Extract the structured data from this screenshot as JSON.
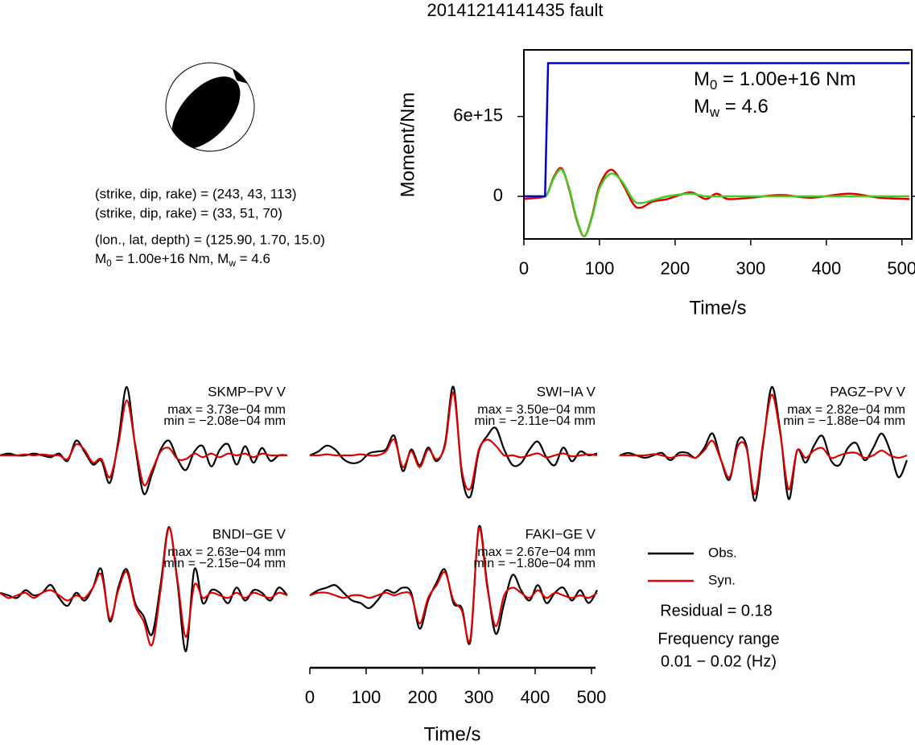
{
  "title": "20141214141435 fault",
  "info": [
    "(strike, dip, rake) = (243, 43, 113)",
    "(strike, dip, rake) = (33, 51, 70)",
    "(lon., lat, depth) = (125.90, 1.70, 15.0)",
    [
      "M",
      "0",
      " = 1.00e+16 Nm, M",
      "w",
      " = 4.6"
    ]
  ],
  "chart_data": [
    {
      "type": "line",
      "xlabel": "Time/s",
      "ylabel": "Moment/Nm",
      "xlim": [
        0,
        513
      ],
      "ylim": [
        -3200000000000000.0,
        1.1e+16
      ],
      "xticks": [
        0,
        100,
        200,
        300,
        400,
        500
      ],
      "yticks": [
        0,
        {
          "value": 6000000000000000.0,
          "label": "6e+15"
        }
      ],
      "annotations": [
        [
          "M",
          "0",
          " = 1.00e+16 Nm"
        ],
        [
          "M",
          "w",
          " = 4.6"
        ]
      ],
      "x": [
        0,
        20,
        28,
        32,
        40,
        50,
        60,
        70,
        80,
        90,
        100,
        115,
        130,
        145,
        155,
        170,
        190,
        220,
        240,
        255,
        270,
        300,
        340,
        380,
        430,
        470,
        510
      ],
      "series": [
        {
          "color": "#dd0000",
          "values": [
            -200000000000000.0,
            -100000000000000.0,
            0,
            300000000000000.0,
            1500000000000000.0,
            2100000000000000.0,
            500000000000000.0,
            -1800000000000000.0,
            -3000000000000000.0,
            -1500000000000000.0,
            800000000000000.0,
            2000000000000000.0,
            1000000000000000.0,
            -600000000000000.0,
            -850000000000000.0,
            -400000000000000.0,
            -200000000000000.0,
            300000000000000.0,
            -200000000000000.0,
            200000000000000.0,
            -200000000000000.0,
            -100000000000000.0,
            100000000000000.0,
            -100000000000000.0,
            200000000000000.0,
            -100000000000000.0,
            -200000000000000.0
          ]
        },
        {
          "color": "#44cc22",
          "values": [
            0,
            0,
            0,
            300000000000000.0,
            1400000000000000.0,
            2000000000000000.0,
            600000000000000.0,
            -1700000000000000.0,
            -3000000000000000.0,
            -1600000000000000.0,
            600000000000000.0,
            1700000000000000.0,
            1100000000000000.0,
            -300000000000000.0,
            -500000000000000.0,
            -300000000000000.0,
            0,
            200000000000000.0,
            0,
            0,
            0,
            0,
            0,
            0,
            0,
            0,
            0
          ]
        },
        {
          "color": "#0000cc",
          "step": true,
          "values": [
            0,
            0,
            0,
            1e+16,
            1e+16,
            1e+16,
            1e+16,
            1e+16,
            1e+16,
            1e+16,
            1e+16,
            1e+16,
            1e+16,
            1e+16,
            1e+16,
            1e+16,
            1e+16,
            1e+16,
            1e+16,
            1e+16,
            1e+16,
            1e+16,
            1e+16,
            1e+16,
            1e+16,
            1e+16,
            1e+16
          ]
        }
      ]
    },
    {
      "type": "waveforms",
      "xlabel": "Time/s",
      "xlim": [
        0,
        510
      ],
      "xticks": [
        0,
        100,
        200,
        300,
        400,
        500
      ],
      "x": [
        0,
        15,
        30,
        45,
        60,
        75,
        90,
        105,
        120,
        135,
        150,
        165,
        180,
        195,
        210,
        225,
        240,
        255,
        270,
        285,
        300,
        315,
        330,
        345,
        360,
        375,
        390,
        405,
        420,
        435,
        450,
        465,
        480,
        495,
        510
      ],
      "series_style": [
        {
          "name": "Obs.",
          "color": "#000000"
        },
        {
          "name": "Syn.",
          "color": "#dd0000"
        }
      ],
      "residual": "Residual = 0.18",
      "frequency": [
        "Frequency range",
        "0.01 − 0.02 (Hz)"
      ],
      "panels": [
        {
          "name": "SKMP−PV V",
          "max": "max = 3.73e−04 mm",
          "min": "min = −2.08e−04 mm",
          "obs": [
            0,
            1e-05,
            0,
            0,
            1e-05,
            0,
            -1e-05,
            1e-05,
            -3e-05,
            8e-05,
            2e-05,
            -5e-05,
            -3e-05,
            -0.00015,
            8e-05,
            0.000373,
            5e-05,
            -0.000208,
            -0.0001,
            3e-05,
            8e-05,
            -2e-05,
            -8e-05,
            2e-05,
            5e-05,
            -6e-05,
            3e-05,
            6e-05,
            -5e-05,
            5e-05,
            -4e-05,
            4e-05,
            -3e-05,
            0,
            0
          ],
          "syn": [
            0,
            0,
            0,
            5e-06,
            0,
            5e-06,
            0,
            0,
            -2e-05,
            6e-05,
            3e-05,
            -4e-05,
            -2e-05,
            -0.00012,
            6e-05,
            0.0003,
            6e-05,
            -0.00016,
            -8e-05,
            2e-05,
            4e-05,
            -2e-05,
            -2e-05,
            1e-05,
            -1e-05,
            1e-05,
            -1e-05,
            1e-05,
            0,
            1e-05,
            -1e-05,
            1e-05,
            0,
            0,
            0
          ]
        },
        {
          "name": "SWI−IA V",
          "max": "max = 3.50e−04 mm",
          "min": "min = −2.11e−04 mm",
          "obs": [
            0,
            2e-05,
            5e-05,
            3e-05,
            -2e-05,
            -4e-05,
            -3e-05,
            1e-05,
            2e-05,
            3e-05,
            0.0001,
            -8e-05,
            3e-05,
            -5e-05,
            4e-05,
            -3e-05,
            6e-05,
            0.00035,
            -0.0001,
            -0.000211,
            2e-05,
            0.0001,
            0.00014,
            3e-05,
            -5e-05,
            -4e-05,
            3e-05,
            7e-05,
            -1e-05,
            -5e-05,
            4e-05,
            -3e-05,
            2e-05,
            0,
            1e-05
          ],
          "syn": [
            0,
            0,
            5e-06,
            0,
            0,
            0,
            5e-06,
            0,
            0,
            2e-05,
            8e-05,
            -6e-05,
            2e-05,
            -6e-05,
            3e-05,
            -2e-05,
            5e-05,
            0.00032,
            -8e-05,
            -0.00017,
            3e-05,
            8e-05,
            5e-05,
            0,
            0,
            -1e-05,
            0,
            1e-05,
            -1e-05,
            0,
            1e-05,
            -5e-06,
            0,
            5e-06,
            0
          ]
        },
        {
          "name": "PAGZ−PV V",
          "max": "max = 2.82e−04 mm",
          "min": "min = −1.88e−04 mm",
          "obs": [
            0,
            1e-05,
            0,
            -1e-05,
            0,
            1e-05,
            -2e-05,
            1e-05,
            1e-05,
            -1e-05,
            3e-05,
            9e-05,
            -2e-05,
            -0.0001,
            6e-05,
            4e-05,
            -0.000188,
            5e-05,
            0.000282,
            0.0001,
            -0.00018,
            2e-05,
            -3e-05,
            4e-05,
            8e-05,
            -2e-05,
            -4e-05,
            3e-05,
            5e-05,
            -2e-05,
            3e-05,
            9e-05,
            2e-05,
            -9e-05,
            -2e-05
          ],
          "syn": [
            0,
            0,
            0,
            0,
            5e-06,
            0,
            -1e-05,
            0,
            0,
            -1e-05,
            2e-05,
            6e-05,
            -2e-05,
            -9e-05,
            4e-05,
            3e-05,
            -0.00016,
            6e-05,
            0.00025,
            9e-05,
            -0.00014,
            2e-05,
            -1e-05,
            2e-05,
            3e-05,
            -1e-05,
            0,
            1e-05,
            1e-05,
            -1e-05,
            0,
            2e-05,
            0,
            -1e-05,
            0
          ]
        },
        {
          "name": "BNDI−GE V",
          "max": "max = 2.63e−04 mm",
          "min": "min = −2.15e−04 mm",
          "obs": [
            1e-05,
            0,
            -1e-05,
            2e-05,
            0,
            1e-05,
            4e-05,
            -1e-05,
            -4e-05,
            1e-05,
            -2e-05,
            3e-05,
            0.0001,
            -0.0001,
            3e-05,
            0.0001,
            -3e-05,
            -8e-05,
            -0.00015,
            4e-05,
            0.000263,
            5e-05,
            -0.000215,
            0.0001,
            -3e-05,
            2e-05,
            1e-05,
            -3e-05,
            3e-05,
            -2e-05,
            2e-05,
            1e-05,
            -2e-05,
            3e-05,
            0
          ],
          "syn": [
            1e-05,
            -1e-05,
            0,
            1e-05,
            -1e-05,
            1e-05,
            2e-05,
            0,
            -2e-05,
            0,
            -1e-05,
            3e-05,
            8e-05,
            -9e-05,
            2e-05,
            9e-05,
            -4e-05,
            -0.0001,
            -0.00019,
            2e-05,
            0.00026,
            6e-05,
            -0.00016,
            4e-05,
            -1e-05,
            1e-05,
            0,
            -1e-05,
            1e-05,
            -1e-05,
            1e-05,
            0,
            -1e-05,
            1e-05,
            0
          ]
        },
        {
          "name": "FAKI−GE V",
          "max": "max = 2.67e−04 mm",
          "min": "min = −1.80e−04 mm",
          "obs": [
            0,
            2e-05,
            3e-05,
            4e-05,
            1e-05,
            -2e-05,
            -3e-05,
            -5e-05,
            -2e-05,
            2e-05,
            1e-05,
            3e-05,
            1e-05,
            -0.00013,
            -2e-05,
            5e-05,
            0.0001,
            -3e-05,
            -5e-05,
            -0.00018,
            0.000267,
            4e-05,
            -0.00015,
            -3e-05,
            8e-05,
            2e-05,
            -2e-05,
            4e-05,
            -3e-05,
            1e-05,
            3e-05,
            -2e-05,
            2e-05,
            -3e-05,
            2e-05
          ],
          "syn": [
            0,
            1e-05,
            1e-05,
            0,
            -1e-05,
            0,
            0,
            -1e-05,
            0,
            1e-05,
            0,
            1e-05,
            0,
            -0.00011,
            -1e-05,
            4e-05,
            9e-05,
            -2e-05,
            -6e-05,
            -0.00017,
            0.00026,
            3e-05,
            -0.00012,
            0,
            3e-05,
            1e-05,
            -1e-05,
            2e-05,
            -1e-05,
            1e-05,
            0,
            -1e-05,
            0,
            -1e-05,
            1e-05
          ]
        }
      ]
    }
  ]
}
